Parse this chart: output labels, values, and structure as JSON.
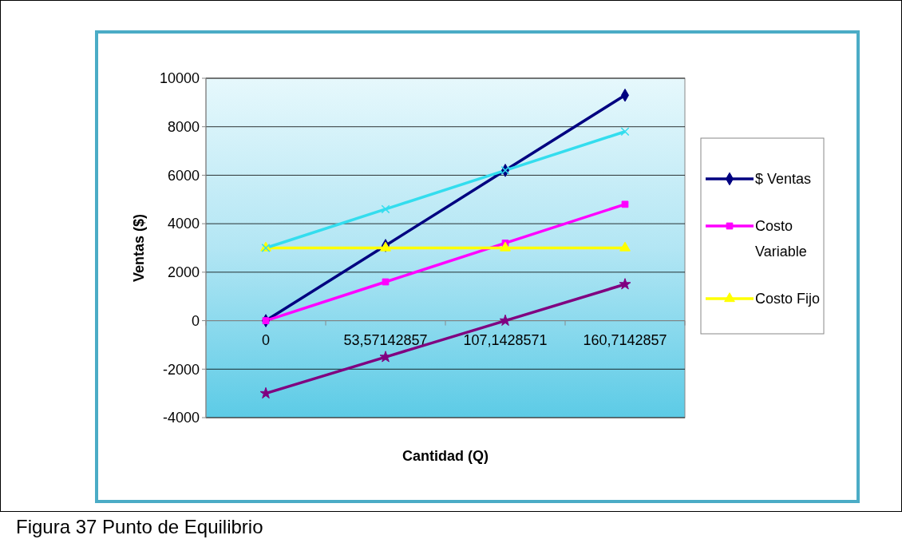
{
  "chart_data": {
    "type": "line",
    "xlabel": "Cantidad (Q)",
    "ylabel": "Ventas ($)",
    "categories": [
      "0",
      "53,57142857",
      "107,1428571",
      "160,7142857"
    ],
    "series": [
      {
        "name": "$ Ventas",
        "color": "#000080",
        "marker": "diamond",
        "values": [
          0,
          3100,
          6200,
          9300
        ]
      },
      {
        "name": "Costo Variable",
        "color": "#ff00ff",
        "marker": "square",
        "values": [
          0,
          1600,
          3200,
          4800
        ]
      },
      {
        "name": "Costo Fijo",
        "color": "#ffff00",
        "marker": "triangle",
        "values": [
          3000,
          3000,
          3000,
          3000
        ]
      },
      {
        "color": "#33ddee",
        "marker": "cross",
        "values": [
          3000,
          4600,
          6200,
          7800
        ]
      },
      {
        "color": "#800080",
        "marker": "star",
        "values": [
          -3000,
          -1500,
          0,
          1500
        ]
      }
    ],
    "ylim": [
      -4000,
      10000
    ],
    "yticks": [
      -4000,
      -2000,
      0,
      2000,
      4000,
      6000,
      8000,
      10000
    ],
    "grid": "y",
    "legend": "right",
    "annotations": [
      "Figura 37 Punto de Equilibrio"
    ]
  }
}
